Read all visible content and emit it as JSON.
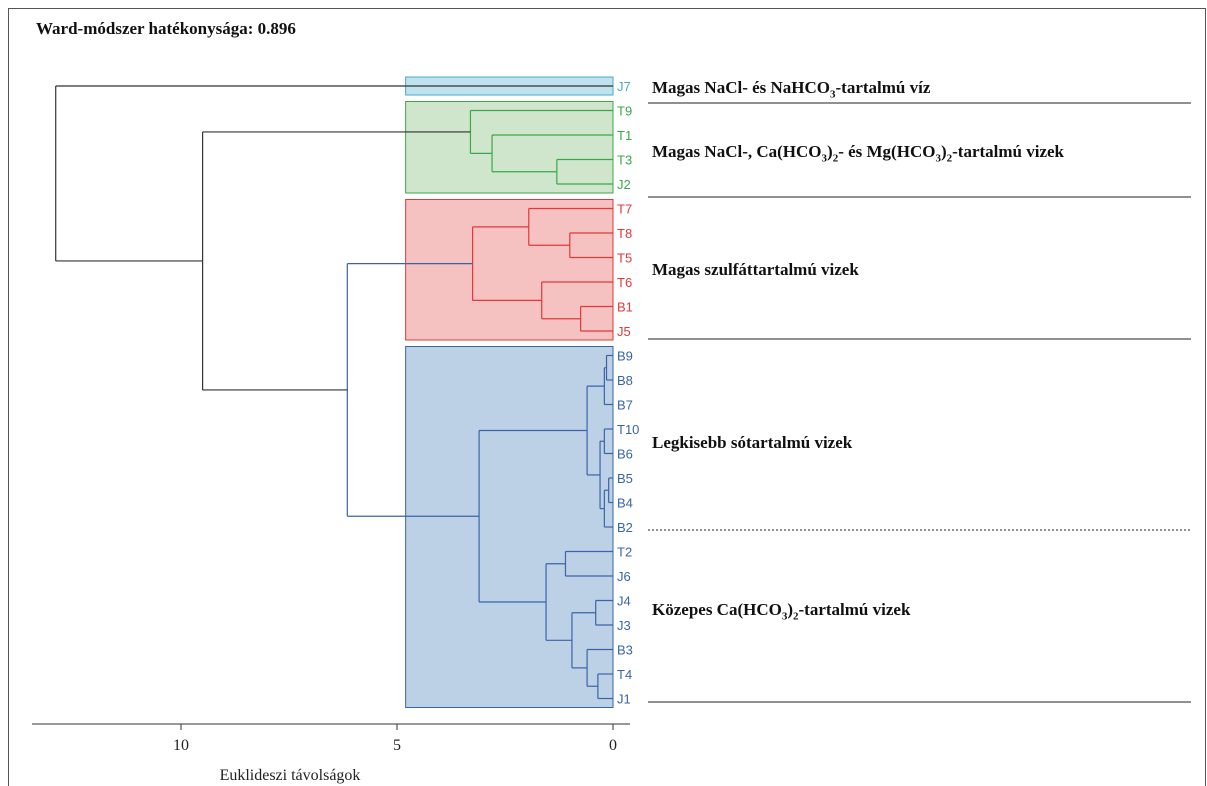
{
  "title": "Ward-módszer hatékonysága: 0.896",
  "chart_data": {
    "type": "dendrogram",
    "orientation": "horizontal",
    "xlabel": "Euklideszi távolságok",
    "x_ticks": [
      10,
      5,
      0
    ],
    "xlim": [
      13,
      0
    ],
    "leaves": [
      "J7",
      "T9",
      "T1",
      "T3",
      "J2",
      "T7",
      "T8",
      "T5",
      "T6",
      "B1",
      "J5",
      "B9",
      "B8",
      "B7",
      "T10",
      "B6",
      "B5",
      "B4",
      "B2",
      "T2",
      "J6",
      "J4",
      "J3",
      "B3",
      "T4",
      "J1"
    ],
    "clusters": [
      {
        "name": "cyan",
        "color": "#4aa8c7",
        "fill": "#bfe3ee",
        "leaves": [
          "J7"
        ]
      },
      {
        "name": "green",
        "color": "#3aa84a",
        "fill": "#cfe6cc",
        "leaves": [
          "T9",
          "T1",
          "T3",
          "J2"
        ]
      },
      {
        "name": "red",
        "color": "#e23838",
        "fill": "#f6c1c1",
        "leaves": [
          "T7",
          "T8",
          "T5",
          "T6",
          "B1",
          "J5"
        ]
      },
      {
        "name": "blue",
        "color": "#3a64a8",
        "fill": "#bcd0e6",
        "leaves": [
          "B9",
          "B8",
          "B7",
          "T10",
          "B6",
          "B5",
          "B4",
          "B2",
          "T2",
          "J6",
          "J4",
          "J3",
          "B3",
          "T4",
          "J1"
        ]
      }
    ],
    "merges": [
      {
        "a": "T3",
        "b": "J2",
        "h": 1.3,
        "color": "#3aa84a"
      },
      {
        "a": "T1",
        "b": "T3+J2",
        "h": 2.8,
        "color": "#3aa84a"
      },
      {
        "a": "T9",
        "b": "T1+T3+J2",
        "h": 3.3,
        "color": "#3aa84a"
      },
      {
        "a": "T8",
        "b": "T5",
        "h": 1.0,
        "color": "#e23838"
      },
      {
        "a": "T7",
        "b": "T8+T5",
        "h": 1.95,
        "color": "#e23838"
      },
      {
        "a": "B1",
        "b": "J5",
        "h": 0.75,
        "color": "#e23838"
      },
      {
        "a": "T6",
        "b": "B1+J5",
        "h": 1.65,
        "color": "#e23838"
      },
      {
        "a": "T7..T5",
        "b": "T6..J5",
        "h": 3.25,
        "color": "#e23838"
      },
      {
        "a": "B9",
        "b": "B8",
        "h": 0.15,
        "color": "#3a64a8"
      },
      {
        "a": "B9+B8",
        "b": "B7",
        "h": 0.2,
        "color": "#3a64a8"
      },
      {
        "a": "T10",
        "b": "B6",
        "h": 0.2,
        "color": "#3a64a8"
      },
      {
        "a": "B5",
        "b": "B4",
        "h": 0.1,
        "color": "#3a64a8"
      },
      {
        "a": "B5+B4",
        "b": "B2",
        "h": 0.2,
        "color": "#3a64a8"
      },
      {
        "a": "T10+B6",
        "b": "B5+B4+B2",
        "h": 0.3,
        "color": "#3a64a8"
      },
      {
        "a": "B9..B7",
        "b": "T10..B2",
        "h": 0.6,
        "color": "#3a64a8"
      },
      {
        "a": "T2",
        "b": "J6",
        "h": 1.1,
        "color": "#3a64a8"
      },
      {
        "a": "J4",
        "b": "J3",
        "h": 0.4,
        "color": "#3a64a8"
      },
      {
        "a": "T4",
        "b": "J1",
        "h": 0.35,
        "color": "#3a64a8"
      },
      {
        "a": "B3",
        "b": "T4+J1",
        "h": 0.6,
        "color": "#3a64a8"
      },
      {
        "a": "J4+J3",
        "b": "B3..J1",
        "h": 0.95,
        "color": "#3a64a8"
      },
      {
        "a": "T2+J6",
        "b": "J4..J1",
        "h": 1.55,
        "color": "#3a64a8"
      },
      {
        "a": "B9..B2",
        "b": "T2..J1",
        "h": 3.1,
        "color": "#3a64a8"
      },
      {
        "a": "red",
        "b": "blue",
        "h": 6.15,
        "color": "#3a64a8"
      },
      {
        "a": "green",
        "b": "red+blue",
        "h": 9.5,
        "color": "#333333"
      },
      {
        "a": "J7",
        "b": "rest",
        "h": 12.9,
        "color": "#333333"
      }
    ],
    "group_labels": [
      {
        "html": "Magas NaCl- és NaHCO<sub>3</sub>-tartalmú víz"
      },
      {
        "html": "Magas NaCl-, Ca(HCO<sub>3</sub>)<sub>2</sub>- és Mg(HCO<sub>3</sub>)<sub>2</sub>-tartalmú vizek"
      },
      {
        "html": "Magas szulfáttartalmú vizek"
      },
      {
        "html": "Legkisebb sótartalmú vizek"
      },
      {
        "html": "Közepes Ca(HCO<sub>3</sub>)<sub>2</sub>-tartalmú vizek"
      }
    ]
  }
}
